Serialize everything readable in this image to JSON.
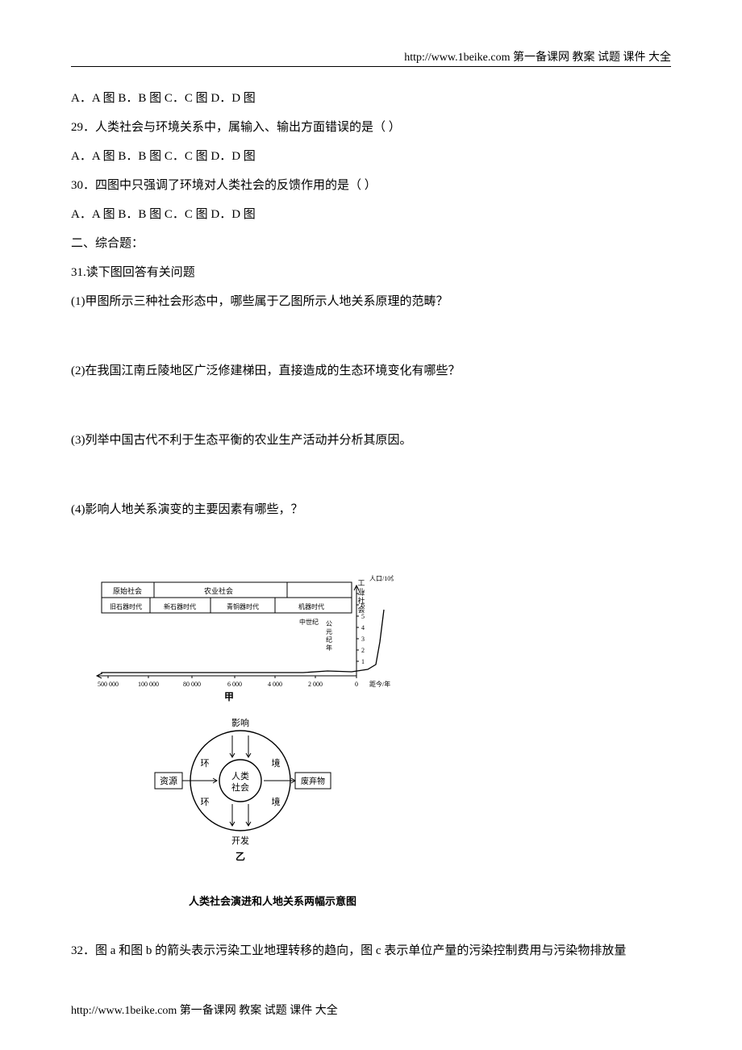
{
  "header": {
    "url_text": "http://www.1beike.com  第一备课网  教案  试题  课件  大全"
  },
  "lines": {
    "q28_opts": "A．A 图 B．B 图 C．C 图 D．D 图",
    "q29": "29．人类社会与环境关系中，属输入、输出方面错误的是（     ）",
    "q29_opts": "A．A 图 B．B 图 C．C 图 D．D 图",
    "q30": "30．四图中只强调了环境对人类社会的反馈作用的是（     ）",
    "q30_opts": "A．A 图 B．B 图 C．C 图 D．D 图",
    "section2": "二、综合题：",
    "q31": "31.读下图回答有关问题",
    "q31_1": "(1)甲图所示三种社会形态中，哪些属于乙图所示人地关系原理的范畴？",
    "q31_2": "(2)在我国江南丘陵地区广泛修建梯田，直接造成的生态环境变化有哪些？",
    "q31_3": "(3)列举中国古代不利于生态平衡的农业生产活动并分析其原因。",
    "q31_4": "(4)影响人地关系演变的主要因素有哪些，？",
    "caption": "人类社会演进和人地关系两幅示意图",
    "q32": "32．图 a 和图 b 的箭头表示污染工业地理转移的趋向，图 c 表示单位产量的污染控制费用与污染物排放量"
  },
  "chart_jia": {
    "title_row1": [
      "原始社会",
      "农业社会",
      "工业社会"
    ],
    "title_row2": [
      "旧石器时代",
      "新石器时代",
      "青铜器时代",
      "机器时代"
    ],
    "mid_label": "中世纪",
    "vert_label": "公元纪年",
    "y_label": "人口/10亿",
    "y_ticks": [
      7,
      6,
      5,
      4,
      3,
      2,
      1
    ],
    "x_ticks": [
      "500 000",
      "100 000",
      "80 000",
      "6 000",
      "4 000",
      "2 000",
      "0"
    ],
    "x_label": "距今/年",
    "sub_label": "甲",
    "colors": {
      "line": "#000000",
      "text": "#000000",
      "bg": "#ffffff"
    },
    "curve_points": [
      [
        0,
        2
      ],
      [
        250,
        2
      ],
      [
        280,
        4
      ],
      [
        310,
        3
      ],
      [
        330,
        6
      ],
      [
        340,
        12
      ],
      [
        345,
        40
      ],
      [
        350,
        80
      ]
    ],
    "font_size_small": 9,
    "font_size_tiny": 8
  },
  "chart_yi": {
    "outer_label_top": "影响",
    "outer_label_bottom": "开发",
    "ring_left1": "环",
    "ring_right1": "境",
    "ring_left2": "环",
    "ring_right2": "境",
    "center": "人类社会",
    "arrow_in": "资源",
    "arrow_out": "废弃物",
    "sub_label": "乙",
    "colors": {
      "stroke": "#000000",
      "text": "#000000"
    },
    "font_size": 11
  },
  "footer": {
    "url_text": "http://www.1beike.com  第一备课网  教案  试题  课件  大全"
  }
}
